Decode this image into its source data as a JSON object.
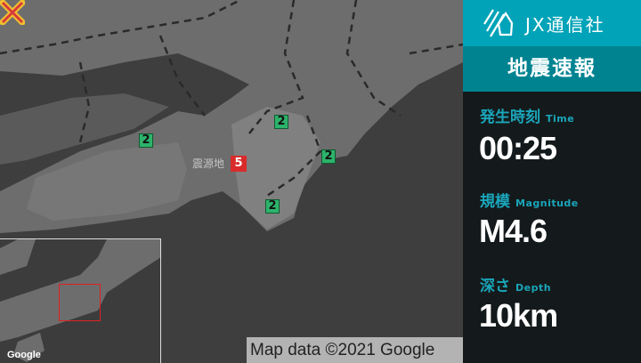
{
  "brand": {
    "name": "JX通信社",
    "icon": "jx-logo-icon"
  },
  "panel": {
    "title": "地震速報",
    "time": {
      "label": "発生時刻",
      "label_en": "Time",
      "value": "00:25"
    },
    "magnitude": {
      "label": "規模",
      "label_en": "Magnitude",
      "value": "M4.6"
    },
    "depth": {
      "label": "深さ",
      "label_en": "Depth",
      "value": "10km"
    }
  },
  "map": {
    "epicenter": {
      "label": "震源地",
      "max_intensity": "5",
      "marker": "x-mark-icon"
    },
    "intensities": [
      "2",
      "2",
      "2",
      "2"
    ],
    "attribution": "Map data ©2021 Google",
    "google_logo": "Google",
    "colors": {
      "epicenter": "#d92b2b",
      "intensity2": "#2db36b",
      "accent": "#00a3b8"
    }
  }
}
